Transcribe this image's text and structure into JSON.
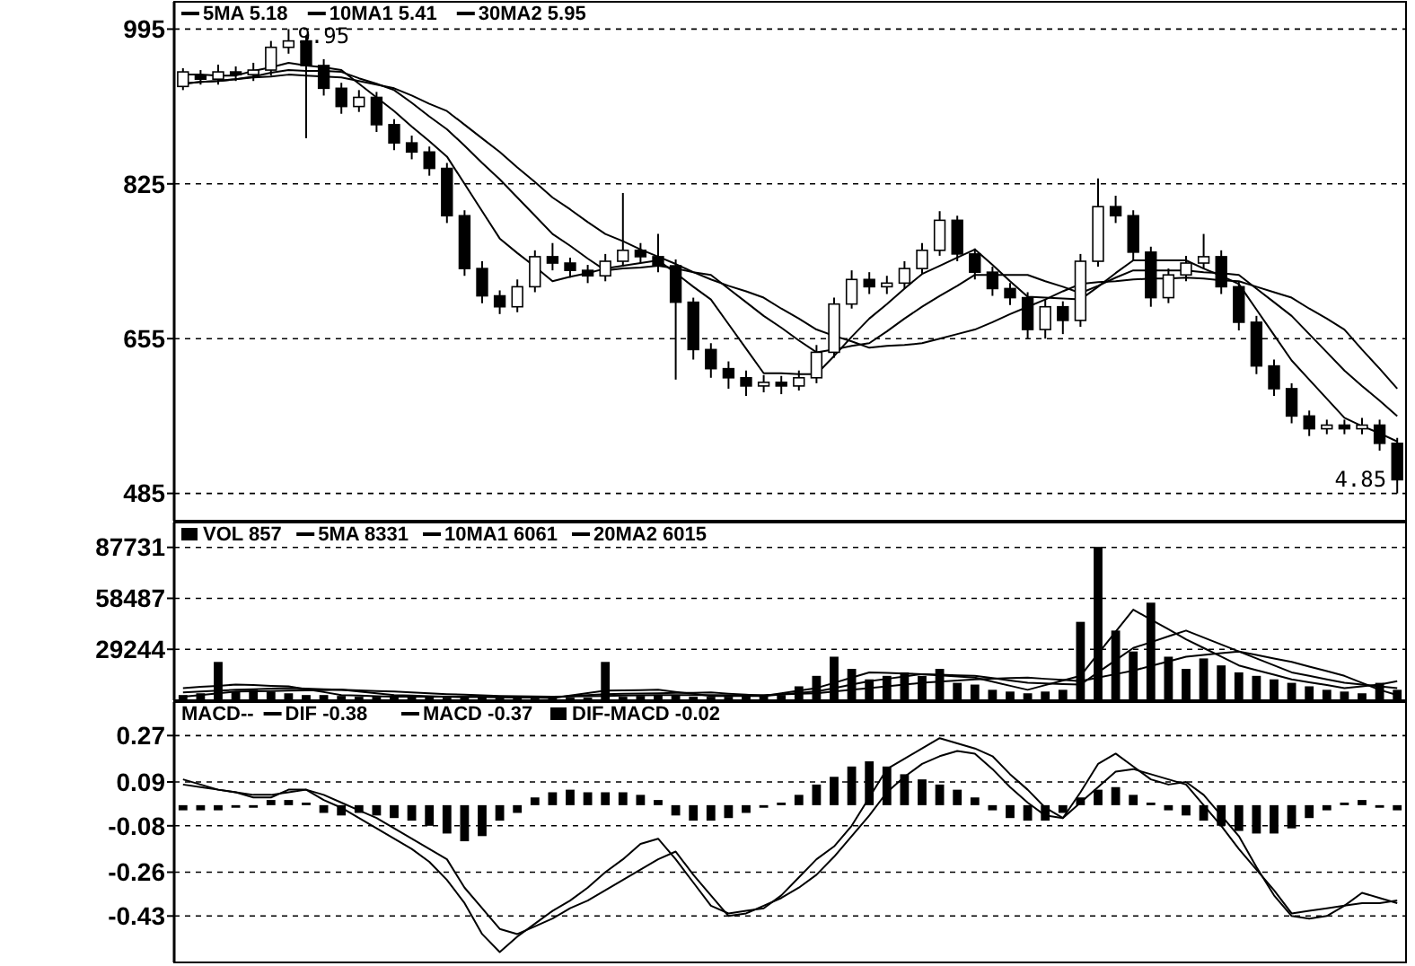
{
  "chart_data": [
    {
      "type": "candlestick",
      "categories": [
        null,
        null,
        null,
        null,
        null,
        null,
        null,
        null,
        null,
        null,
        null,
        null,
        null,
        null,
        null,
        null,
        null,
        null,
        null,
        null,
        null,
        null,
        null,
        null,
        null,
        null,
        null,
        null,
        null,
        null,
        null,
        null,
        null,
        null,
        null,
        null,
        null,
        null,
        null,
        null,
        null,
        null,
        null,
        null,
        null,
        null,
        null,
        null,
        null,
        null,
        null,
        null,
        null,
        null,
        null,
        null,
        null,
        null,
        null,
        null,
        null,
        null,
        null,
        null,
        null,
        null,
        null,
        null,
        null,
        null
      ],
      "ylim": [
        455,
        1025
      ],
      "yticks": [
        995,
        825,
        655,
        485
      ],
      "grid": "y",
      "tick_labels": "y",
      "legend": "top left",
      "ohlc": [
        [
          932,
          952,
          928,
          948
        ],
        [
          944,
          950,
          934,
          940
        ],
        [
          940,
          956,
          934,
          948
        ],
        [
          948,
          954,
          938,
          945
        ],
        [
          945,
          958,
          938,
          950
        ],
        [
          950,
          982,
          944,
          975
        ],
        [
          975,
          995,
          968,
          982
        ],
        [
          982,
          988,
          875,
          955
        ],
        [
          955,
          962,
          922,
          930
        ],
        [
          930,
          936,
          902,
          910
        ],
        [
          910,
          928,
          904,
          920
        ],
        [
          920,
          926,
          882,
          890
        ],
        [
          890,
          896,
          862,
          870
        ],
        [
          870,
          878,
          852,
          860
        ],
        [
          860,
          866,
          834,
          842
        ],
        [
          842,
          848,
          782,
          790
        ],
        [
          790,
          796,
          724,
          732
        ],
        [
          732,
          740,
          694,
          702
        ],
        [
          702,
          708,
          682,
          690
        ],
        [
          690,
          720,
          684,
          712
        ],
        [
          712,
          752,
          706,
          745
        ],
        [
          745,
          760,
          730,
          738
        ],
        [
          738,
          744,
          722,
          730
        ],
        [
          730,
          736,
          716,
          724
        ],
        [
          724,
          748,
          718,
          740
        ],
        [
          740,
          815,
          734,
          752
        ],
        [
          752,
          760,
          738,
          745
        ],
        [
          745,
          770,
          728,
          735
        ],
        [
          735,
          742,
          610,
          695
        ],
        [
          695,
          700,
          632,
          643
        ],
        [
          643,
          650,
          612,
          622
        ],
        [
          622,
          630,
          600,
          612
        ],
        [
          612,
          620,
          592,
          603
        ],
        [
          603,
          615,
          596,
          607
        ],
        [
          607,
          614,
          594,
          603
        ],
        [
          603,
          620,
          598,
          612
        ],
        [
          612,
          648,
          606,
          640
        ],
        [
          640,
          700,
          634,
          693
        ],
        [
          693,
          730,
          688,
          720
        ],
        [
          720,
          728,
          704,
          712
        ],
        [
          712,
          724,
          704,
          716
        ],
        [
          716,
          740,
          710,
          732
        ],
        [
          732,
          760,
          726,
          752
        ],
        [
          752,
          795,
          746,
          785
        ],
        [
          785,
          790,
          740,
          748
        ],
        [
          748,
          754,
          720,
          728
        ],
        [
          728,
          734,
          702,
          710
        ],
        [
          710,
          716,
          692,
          700
        ],
        [
          700,
          706,
          655,
          665
        ],
        [
          665,
          698,
          655,
          690
        ],
        [
          690,
          696,
          660,
          675
        ],
        [
          675,
          748,
          668,
          740
        ],
        [
          740,
          831,
          734,
          800
        ],
        [
          800,
          812,
          782,
          790
        ],
        [
          790,
          796,
          740,
          750
        ],
        [
          750,
          756,
          690,
          700
        ],
        [
          700,
          732,
          694,
          725
        ],
        [
          725,
          746,
          718,
          738
        ],
        [
          738,
          770,
          732,
          745
        ],
        [
          745,
          752,
          704,
          712
        ],
        [
          712,
          718,
          664,
          673
        ],
        [
          673,
          680,
          616,
          625
        ],
        [
          625,
          632,
          592,
          600
        ],
        [
          600,
          606,
          562,
          570
        ],
        [
          570,
          576,
          548,
          556
        ],
        [
          556,
          566,
          550,
          560
        ],
        [
          560,
          566,
          550,
          556
        ],
        [
          556,
          568,
          550,
          560
        ],
        [
          560,
          566,
          532,
          540
        ],
        [
          540,
          546,
          485,
          500
        ]
      ],
      "series": [
        {
          "type": "line",
          "name": "5MA 5.18",
          "color": "#000000",
          "values": [
            945,
            945,
            944,
            944,
            949,
            953,
            958,
            955,
            953,
            950,
            935,
            920,
            905,
            888,
            872,
            855,
            825,
            795,
            765,
            749,
            734,
            718,
            723,
            727,
            732,
            735,
            738,
            741,
            727,
            712,
            698,
            671,
            644,
            617,
            617,
            616,
            616,
            636,
            657,
            677,
            693,
            710,
            726,
            735,
            744,
            753,
            736,
            718,
            701,
            700,
            699,
            698,
            712,
            727,
            741,
            741,
            741,
            741,
            732,
            724,
            715,
            687,
            659,
            631,
            610,
            589,
            568,
            559,
            551,
            542
          ]
        },
        {
          "type": "line",
          "name": "10MA1 5.41",
          "color": "#000000",
          "values": [
            935,
            937,
            938,
            940,
            943,
            947,
            950,
            949,
            949,
            948,
            941,
            935,
            928,
            914,
            899,
            885,
            867,
            848,
            830,
            810,
            790,
            770,
            757,
            743,
            730,
            732,
            733,
            735,
            732,
            728,
            725,
            710,
            695,
            680,
            667,
            653,
            640,
            643,
            647,
            650,
            663,
            677,
            690,
            702,
            713,
            725,
            725,
            725,
            725,
            718,
            712,
            705,
            713,
            722,
            730,
            730,
            730,
            730,
            728,
            727,
            725,
            710,
            695,
            680,
            660,
            640,
            620,
            603,
            587,
            570
          ]
        },
        {
          "type": "line",
          "name": "30MA2 5.95",
          "color": "#000000",
          "values": [
            935,
            937,
            938,
            940,
            942,
            943,
            945,
            944,
            943,
            942,
            938,
            934,
            930,
            922,
            913,
            905,
            890,
            875,
            860,
            843,
            827,
            810,
            797,
            783,
            770,
            762,
            753,
            745,
            737,
            728,
            720,
            713,
            707,
            700,
            688,
            677,
            665,
            658,
            652,
            645,
            647,
            648,
            650,
            655,
            660,
            665,
            673,
            682,
            690,
            698,
            707,
            715,
            717,
            718,
            720,
            721,
            721,
            722,
            721,
            719,
            718,
            712,
            706,
            700,
            688,
            677,
            665,
            643,
            622,
            600
          ]
        }
      ],
      "annotations": [
        "9.95",
        "4.85"
      ]
    },
    {
      "type": "bar",
      "categories": [
        null,
        null,
        null,
        null,
        null,
        null,
        null,
        null,
        null,
        null,
        null,
        null,
        null,
        null,
        null,
        null,
        null,
        null,
        null,
        null,
        null,
        null,
        null,
        null,
        null,
        null,
        null,
        null,
        null,
        null,
        null,
        null,
        null,
        null,
        null,
        null,
        null,
        null,
        null,
        null,
        null,
        null,
        null,
        null,
        null,
        null,
        null,
        null,
        null,
        null,
        null,
        null,
        null,
        null,
        null,
        null,
        null,
        null,
        null,
        null,
        null,
        null,
        null,
        null,
        null,
        null,
        null,
        null,
        null,
        null
      ],
      "ylim": [
        0,
        102000
      ],
      "yticks": [
        87731,
        58487,
        29244
      ],
      "grid": "y",
      "tick_labels": "y",
      "legend": "top left",
      "series": [
        {
          "name": "VOL 857",
          "color": "#000000",
          "values": [
            3000,
            4000,
            22000,
            5000,
            6000,
            5000,
            4000,
            3000,
            3000,
            2500,
            2000,
            2000,
            2000,
            2500,
            2000,
            1500,
            2000,
            2000,
            1500,
            1500,
            1000,
            1500,
            1500,
            1500,
            22000,
            2000,
            2500,
            3000,
            3000,
            2000,
            2000,
            2000,
            2500,
            3000,
            3000,
            8000,
            14000,
            25000,
            18000,
            12000,
            14000,
            16000,
            14000,
            18000,
            10000,
            9000,
            6000,
            5000,
            4000,
            5000,
            6000,
            45000,
            88000,
            40000,
            28000,
            56000,
            25000,
            18000,
            24000,
            20000,
            16000,
            14000,
            12000,
            10000,
            8000,
            6000,
            5000,
            4000,
            10000,
            6000
          ]
        },
        {
          "type": "line",
          "name": "5MA 8331",
          "color": "#000000",
          "values": [
            7000,
            7700,
            8300,
            9000,
            8700,
            8300,
            8000,
            6300,
            4700,
            3000,
            2700,
            2300,
            2000,
            2000,
            2000,
            2000,
            1900,
            1900,
            1800,
            1600,
            1500,
            1300,
            2700,
            4100,
            5500,
            5700,
            5800,
            6000,
            4800,
            3700,
            2500,
            2500,
            2500,
            2500,
            4000,
            5500,
            7000,
            10000,
            13000,
            16000,
            15700,
            15300,
            15000,
            14300,
            13700,
            13000,
            10700,
            8300,
            6000,
            8700,
            11300,
            14000,
            26700,
            39300,
            52000,
            46300,
            40700,
            35000,
            30000,
            25000,
            20000,
            17300,
            14700,
            12000,
            10300,
            8700,
            7000,
            8000,
            9000,
            11000
          ]
        },
        {
          "type": "line",
          "name": "10MA1 6061",
          "color": "#000000",
          "values": [
            4500,
            5000,
            5500,
            6000,
            6300,
            6700,
            7000,
            6700,
            6300,
            6000,
            5000,
            4000,
            3000,
            2700,
            2300,
            2000,
            1900,
            1900,
            1800,
            1800,
            1700,
            1700,
            2300,
            2900,
            3500,
            3700,
            3800,
            4000,
            4200,
            4300,
            4500,
            3800,
            3200,
            2500,
            3300,
            4200,
            5000,
            7000,
            9000,
            11000,
            12300,
            13700,
            15000,
            14700,
            14300,
            14000,
            12700,
            11300,
            10000,
            9700,
            9300,
            9000,
            16000,
            23000,
            30000,
            33300,
            36700,
            40000,
            36000,
            32000,
            28000,
            24000,
            20000,
            16000,
            14000,
            12000,
            10000,
            9000,
            8000,
            7000
          ]
        },
        {
          "type": "line",
          "name": "20MA2 6015",
          "color": "#000000",
          "values": [
            2000,
            3000,
            4000,
            5000,
            5200,
            5300,
            5500,
            5700,
            5800,
            6000,
            5700,
            5300,
            5000,
            4500,
            4000,
            3500,
            3200,
            2800,
            2500,
            2300,
            2200,
            2000,
            2200,
            2300,
            2500,
            2700,
            2800,
            3000,
            3000,
            3000,
            3000,
            3000,
            3000,
            3000,
            3300,
            3700,
            4000,
            5000,
            6000,
            7000,
            8000,
            9000,
            10000,
            10700,
            11300,
            12000,
            12300,
            12700,
            13000,
            12300,
            11700,
            11000,
            13000,
            15000,
            17000,
            19700,
            22300,
            25000,
            26000,
            27000,
            28000,
            26000,
            24000,
            22000,
            19300,
            16700,
            14000,
            10000,
            6000,
            3000
          ]
        }
      ]
    },
    {
      "type": "bar",
      "title": "MACD--",
      "categories": [
        null,
        null,
        null,
        null,
        null,
        null,
        null,
        null,
        null,
        null,
        null,
        null,
        null,
        null,
        null,
        null,
        null,
        null,
        null,
        null,
        null,
        null,
        null,
        null,
        null,
        null,
        null,
        null,
        null,
        null,
        null,
        null,
        null,
        null,
        null,
        null,
        null,
        null,
        null,
        null,
        null,
        null,
        null,
        null,
        null,
        null,
        null,
        null,
        null,
        null,
        null,
        null,
        null,
        null,
        null,
        null,
        null,
        null,
        null,
        null,
        null,
        null,
        null,
        null,
        null,
        null,
        null,
        null,
        null,
        null
      ],
      "ylim": [
        -0.61,
        0.4
      ],
      "yticks": [
        0.27,
        0.09,
        -0.08,
        -0.26,
        -0.43
      ],
      "grid": "y",
      "tick_labels": "y",
      "legend": "top left",
      "series": [
        {
          "type": "line",
          "name": "DIF -0.38",
          "color": "#000000",
          "values": [
            0.1,
            0.08,
            0.06,
            0.05,
            0.03,
            0.03,
            0.06,
            0.06,
            0.02,
            -0.01,
            -0.05,
            -0.09,
            -0.13,
            -0.17,
            -0.22,
            -0.29,
            -0.38,
            -0.5,
            -0.57,
            -0.51,
            -0.46,
            -0.41,
            -0.37,
            -0.32,
            -0.26,
            -0.21,
            -0.15,
            -0.13,
            -0.21,
            -0.3,
            -0.39,
            -0.42,
            -0.41,
            -0.4,
            -0.35,
            -0.28,
            -0.21,
            -0.16,
            -0.08,
            0.03,
            0.14,
            0.18,
            0.22,
            0.26,
            0.24,
            0.22,
            0.19,
            0.12,
            0.06,
            -0.01,
            -0.05,
            0.05,
            0.16,
            0.2,
            0.15,
            0.1,
            0.08,
            0.09,
            0.04,
            -0.04,
            -0.12,
            -0.24,
            -0.35,
            -0.43,
            -0.44,
            -0.43,
            -0.39,
            -0.34,
            -0.36,
            -0.38
          ]
        },
        {
          "type": "line",
          "name": "MACD -0.37",
          "color": "#000000",
          "values": [
            0.08,
            0.07,
            0.06,
            0.05,
            0.04,
            0.04,
            0.05,
            0.06,
            0.04,
            0.01,
            -0.02,
            -0.05,
            -0.09,
            -0.13,
            -0.17,
            -0.21,
            -0.32,
            -0.4,
            -0.48,
            -0.5,
            -0.47,
            -0.44,
            -0.4,
            -0.37,
            -0.33,
            -0.29,
            -0.25,
            -0.21,
            -0.18,
            -0.27,
            -0.35,
            -0.43,
            -0.42,
            -0.39,
            -0.36,
            -0.32,
            -0.27,
            -0.2,
            -0.12,
            -0.04,
            0.05,
            0.11,
            0.16,
            0.19,
            0.21,
            0.2,
            0.14,
            0.07,
            0.01,
            -0.04,
            -0.05,
            0.01,
            0.07,
            0.13,
            0.14,
            0.12,
            0.1,
            0.08,
            0,
            -0.08,
            -0.17,
            -0.25,
            -0.33,
            -0.42,
            -0.41,
            -0.4,
            -0.39,
            -0.38,
            -0.38,
            -0.37
          ]
        },
        {
          "name": "DIF-MACD -0.02",
          "color": "#000000",
          "values": [
            -0.02,
            -0.02,
            -0.02,
            -0.01,
            -0.01,
            0.02,
            0.02,
            0.01,
            -0.03,
            -0.04,
            -0.03,
            -0.04,
            -0.05,
            -0.06,
            -0.08,
            -0.11,
            -0.14,
            -0.12,
            -0.06,
            -0.03,
            0.03,
            0.05,
            0.06,
            0.05,
            0.05,
            0.05,
            0.04,
            0.02,
            -0.04,
            -0.06,
            -0.06,
            -0.05,
            -0.03,
            -0.01,
            0.01,
            0.04,
            0.08,
            0.11,
            0.15,
            0.17,
            0.15,
            0.12,
            0.1,
            0.08,
            0.06,
            0.03,
            -0.02,
            -0.05,
            -0.06,
            -0.06,
            -0.03,
            0.03,
            0.06,
            0.07,
            0.04,
            0.01,
            -0.02,
            -0.04,
            -0.06,
            -0.08,
            -0.1,
            -0.11,
            -0.11,
            -0.09,
            -0.05,
            -0.02,
            0.01,
            0.02,
            -0.01,
            -0.02
          ]
        }
      ]
    }
  ]
}
